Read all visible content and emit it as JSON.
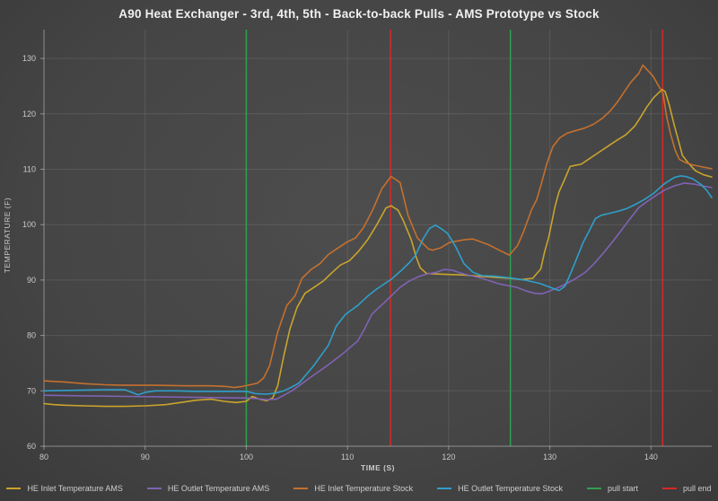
{
  "chart_data": {
    "type": "line",
    "title": "A90 Heat Exchanger - 3rd, 4th, 5th - Back-to-back Pulls - AMS Prototype vs Stock",
    "xlabel": "TIME (S)",
    "ylabel": "TEMPERATURE (F)",
    "xlim": [
      80,
      146
    ],
    "ylim": [
      60,
      135.2
    ],
    "x_ticks": [
      80,
      90,
      100,
      110,
      120,
      130,
      140
    ],
    "y_ticks": [
      60,
      70,
      80,
      90,
      100,
      110,
      120,
      130
    ],
    "grid": true,
    "legend_position": "bottom",
    "colors": {
      "grid": "rgba(255,255,255,0.10)",
      "axis": "rgba(255,255,255,0.40)",
      "tick_text": "#c9c9c9"
    },
    "series": [
      {
        "name": "HE Inlet Temperature AMS",
        "color": "#c9a42c",
        "points": [
          [
            80,
            67.7
          ],
          [
            81,
            67.5
          ],
          [
            82,
            67.4
          ],
          [
            84,
            67.3
          ],
          [
            86,
            67.2
          ],
          [
            88,
            67.2
          ],
          [
            90,
            67.3
          ],
          [
            92,
            67.5
          ],
          [
            93.5,
            67.9
          ],
          [
            95,
            68.3
          ],
          [
            96.5,
            68.5
          ],
          [
            97.8,
            68.1
          ],
          [
            99,
            67.9
          ],
          [
            100,
            68.1
          ],
          [
            100.6,
            69.0
          ],
          [
            101.3,
            68.5
          ],
          [
            102,
            68.2
          ],
          [
            102.6,
            68.7
          ],
          [
            103.1,
            70.9
          ],
          [
            103.7,
            76.3
          ],
          [
            104.3,
            81.1
          ],
          [
            105,
            85.0
          ],
          [
            105.8,
            87.6
          ],
          [
            106.7,
            88.7
          ],
          [
            107.6,
            89.8
          ],
          [
            108.5,
            91.4
          ],
          [
            109.3,
            92.7
          ],
          [
            110.2,
            93.5
          ],
          [
            111.1,
            95.2
          ],
          [
            112,
            97.3
          ],
          [
            112.9,
            100.0
          ],
          [
            113.8,
            103.0
          ],
          [
            114.3,
            103.4
          ],
          [
            115,
            102.6
          ],
          [
            115.5,
            100.8
          ],
          [
            116.3,
            97.3
          ],
          [
            116.8,
            94.1
          ],
          [
            117.2,
            92.2
          ],
          [
            117.8,
            91.2
          ],
          [
            118.6,
            91.1
          ],
          [
            120,
            91.0
          ],
          [
            121.5,
            90.9
          ],
          [
            123,
            90.7
          ],
          [
            124.5,
            90.5
          ],
          [
            126,
            90.3
          ],
          [
            127.2,
            90.1
          ],
          [
            128.3,
            90.3
          ],
          [
            129.1,
            92.0
          ],
          [
            129.5,
            95.2
          ],
          [
            129.9,
            97.8
          ],
          [
            130.2,
            100.5
          ],
          [
            130.5,
            103.2
          ],
          [
            130.9,
            105.9
          ],
          [
            131.4,
            107.9
          ],
          [
            132,
            110.5
          ],
          [
            132.5,
            110.7
          ],
          [
            133.1,
            110.9
          ],
          [
            133.9,
            111.9
          ],
          [
            134.8,
            113.0
          ],
          [
            135.7,
            114.1
          ],
          [
            136.6,
            115.2
          ],
          [
            137.5,
            116.2
          ],
          [
            138.4,
            117.8
          ],
          [
            139,
            119.5
          ],
          [
            139.6,
            121.3
          ],
          [
            140.3,
            123.0
          ],
          [
            141.1,
            124.4
          ],
          [
            141.4,
            124.0
          ],
          [
            141.8,
            121.6
          ],
          [
            142.3,
            117.9
          ],
          [
            142.8,
            114.6
          ],
          [
            143.1,
            112.5
          ],
          [
            143.7,
            111.1
          ],
          [
            144.4,
            109.7
          ],
          [
            145.2,
            109.0
          ],
          [
            146,
            108.6
          ]
        ]
      },
      {
        "name": "HE Outlet Temperature AMS",
        "color": "#7f63b4",
        "points": [
          [
            80,
            69.2
          ],
          [
            84,
            69.1
          ],
          [
            88,
            69.0
          ],
          [
            92,
            68.9
          ],
          [
            96,
            68.8
          ],
          [
            100,
            68.7
          ],
          [
            101,
            68.6
          ],
          [
            102,
            68.4
          ],
          [
            103,
            68.5
          ],
          [
            103.7,
            69.2
          ],
          [
            104.5,
            70.0
          ],
          [
            105.2,
            70.9
          ],
          [
            106.7,
            72.9
          ],
          [
            108.1,
            74.7
          ],
          [
            109.6,
            76.8
          ],
          [
            111,
            79.0
          ],
          [
            111.7,
            81.2
          ],
          [
            112.4,
            83.8
          ],
          [
            113.5,
            85.7
          ],
          [
            114.3,
            87.1
          ],
          [
            115.2,
            88.7
          ],
          [
            116.1,
            89.8
          ],
          [
            117,
            90.6
          ],
          [
            117.9,
            91.1
          ],
          [
            118.8,
            91.4
          ],
          [
            119.5,
            91.9
          ],
          [
            120.3,
            91.8
          ],
          [
            121.5,
            91.1
          ],
          [
            123.3,
            90.3
          ],
          [
            125,
            89.3
          ],
          [
            126.7,
            88.7
          ],
          [
            127.7,
            88.0
          ],
          [
            128.5,
            87.6
          ],
          [
            129.2,
            87.5
          ],
          [
            130,
            88.0
          ],
          [
            130.9,
            88.7
          ],
          [
            131.8,
            89.5
          ],
          [
            132.6,
            90.3
          ],
          [
            133.5,
            91.4
          ],
          [
            134.4,
            93.0
          ],
          [
            135.3,
            94.9
          ],
          [
            136.2,
            96.9
          ],
          [
            137,
            98.8
          ],
          [
            137.9,
            101.0
          ],
          [
            138.8,
            103.1
          ],
          [
            139.7,
            104.3
          ],
          [
            140.6,
            105.4
          ],
          [
            141.4,
            106.3
          ],
          [
            142.3,
            107.0
          ],
          [
            143.3,
            107.5
          ],
          [
            144.3,
            107.3
          ],
          [
            145.1,
            107.0
          ],
          [
            146,
            106.7
          ]
        ]
      },
      {
        "name": "HE Inlet Temperature Stock",
        "color": "#c4702e",
        "points": [
          [
            80,
            71.8
          ],
          [
            82,
            71.6
          ],
          [
            84,
            71.3
          ],
          [
            86,
            71.1
          ],
          [
            88,
            71.0
          ],
          [
            91,
            71.0
          ],
          [
            94,
            70.9
          ],
          [
            96.5,
            70.9
          ],
          [
            98,
            70.8
          ],
          [
            98.8,
            70.6
          ],
          [
            99.6,
            70.8
          ],
          [
            100.4,
            71.1
          ],
          [
            101.1,
            71.4
          ],
          [
            101.7,
            72.3
          ],
          [
            102.3,
            74.5
          ],
          [
            103.1,
            80.6
          ],
          [
            104,
            85.4
          ],
          [
            104.8,
            87.1
          ],
          [
            105.5,
            90.3
          ],
          [
            106.4,
            91.9
          ],
          [
            107.3,
            93.0
          ],
          [
            108.1,
            94.6
          ],
          [
            109,
            95.7
          ],
          [
            109.9,
            96.8
          ],
          [
            110.8,
            97.6
          ],
          [
            111.6,
            99.5
          ],
          [
            112.5,
            102.7
          ],
          [
            113.4,
            106.5
          ],
          [
            114.3,
            108.7
          ],
          [
            115.2,
            107.6
          ],
          [
            116,
            101.6
          ],
          [
            116.9,
            97.6
          ],
          [
            118,
            95.6
          ],
          [
            118.4,
            95.4
          ],
          [
            119.2,
            95.8
          ],
          [
            120.1,
            96.8
          ],
          [
            121.6,
            97.3
          ],
          [
            122.4,
            97.4
          ],
          [
            123.9,
            96.4
          ],
          [
            125.1,
            95.3
          ],
          [
            126,
            94.5
          ],
          [
            126.8,
            96.2
          ],
          [
            127.4,
            98.7
          ],
          [
            128.2,
            102.7
          ],
          [
            128.7,
            104.5
          ],
          [
            129.1,
            107.0
          ],
          [
            129.7,
            111.0
          ],
          [
            130.3,
            114.1
          ],
          [
            131,
            115.7
          ],
          [
            131.7,
            116.5
          ],
          [
            132.6,
            117.0
          ],
          [
            133.4,
            117.4
          ],
          [
            134.3,
            118.1
          ],
          [
            135.2,
            119.2
          ],
          [
            136,
            120.6
          ],
          [
            136.7,
            122.2
          ],
          [
            137.3,
            123.8
          ],
          [
            138,
            125.7
          ],
          [
            138.8,
            127.3
          ],
          [
            139.2,
            128.8
          ],
          [
            140.2,
            126.8
          ],
          [
            140.8,
            124.9
          ],
          [
            141.2,
            123.6
          ],
          [
            141.5,
            119.9
          ],
          [
            141.9,
            116.6
          ],
          [
            142.4,
            113.4
          ],
          [
            142.8,
            111.8
          ],
          [
            143.4,
            111.2
          ],
          [
            144.1,
            110.8
          ],
          [
            145.1,
            110.4
          ],
          [
            146,
            110.1
          ]
        ]
      },
      {
        "name": "HE Outlet Temperature Stock",
        "color": "#2f9fca",
        "points": [
          [
            80,
            70.0
          ],
          [
            83,
            70.1
          ],
          [
            86,
            70.2
          ],
          [
            88,
            70.2
          ],
          [
            88.7,
            69.7
          ],
          [
            89.3,
            69.3
          ],
          [
            90,
            69.7
          ],
          [
            91,
            70.0
          ],
          [
            93,
            70.0
          ],
          [
            95,
            69.9
          ],
          [
            97,
            69.9
          ],
          [
            99,
            69.9
          ],
          [
            100,
            69.9
          ],
          [
            100.9,
            69.5
          ],
          [
            102,
            69.4
          ],
          [
            102.9,
            69.6
          ],
          [
            103.7,
            70.0
          ],
          [
            104.5,
            70.7
          ],
          [
            105.2,
            71.4
          ],
          [
            106.6,
            74.4
          ],
          [
            108.1,
            78.2
          ],
          [
            108.9,
            81.7
          ],
          [
            109.8,
            83.8
          ],
          [
            111,
            85.4
          ],
          [
            112,
            87.1
          ],
          [
            112.9,
            88.4
          ],
          [
            113.8,
            89.5
          ],
          [
            114.3,
            90.1
          ],
          [
            115.3,
            91.7
          ],
          [
            116.2,
            93.3
          ],
          [
            116.7,
            94.4
          ],
          [
            117.5,
            97.5
          ],
          [
            118.1,
            99.3
          ],
          [
            118.7,
            99.9
          ],
          [
            119.4,
            99.1
          ],
          [
            119.9,
            98.4
          ],
          [
            120.7,
            96.0
          ],
          [
            121.5,
            93.0
          ],
          [
            122.4,
            91.4
          ],
          [
            123.3,
            90.8
          ],
          [
            124.5,
            90.7
          ],
          [
            126,
            90.4
          ],
          [
            127.5,
            90.0
          ],
          [
            129,
            89.4
          ],
          [
            130,
            88.7
          ],
          [
            130.9,
            88.1
          ],
          [
            131.5,
            88.9
          ],
          [
            132.1,
            91.4
          ],
          [
            132.7,
            94.1
          ],
          [
            133.3,
            96.8
          ],
          [
            133.9,
            98.9
          ],
          [
            134.5,
            101.1
          ],
          [
            135.1,
            101.7
          ],
          [
            135.8,
            102.0
          ],
          [
            136.7,
            102.4
          ],
          [
            137.6,
            102.9
          ],
          [
            138.5,
            103.7
          ],
          [
            139.4,
            104.6
          ],
          [
            140.3,
            105.7
          ],
          [
            141.2,
            107.2
          ],
          [
            141.5,
            107.6
          ],
          [
            142.3,
            108.5
          ],
          [
            142.9,
            108.8
          ],
          [
            143.4,
            108.7
          ],
          [
            144.1,
            108.3
          ],
          [
            144.9,
            107.3
          ],
          [
            145.5,
            106.2
          ],
          [
            146,
            104.9
          ]
        ]
      }
    ],
    "events": [
      {
        "name": "pull start",
        "color": "#2fa04f",
        "times": [
          100.0,
          126.1
        ]
      },
      {
        "name": "pull end",
        "color": "#d42a2a",
        "times": [
          114.25,
          141.15
        ]
      }
    ]
  }
}
